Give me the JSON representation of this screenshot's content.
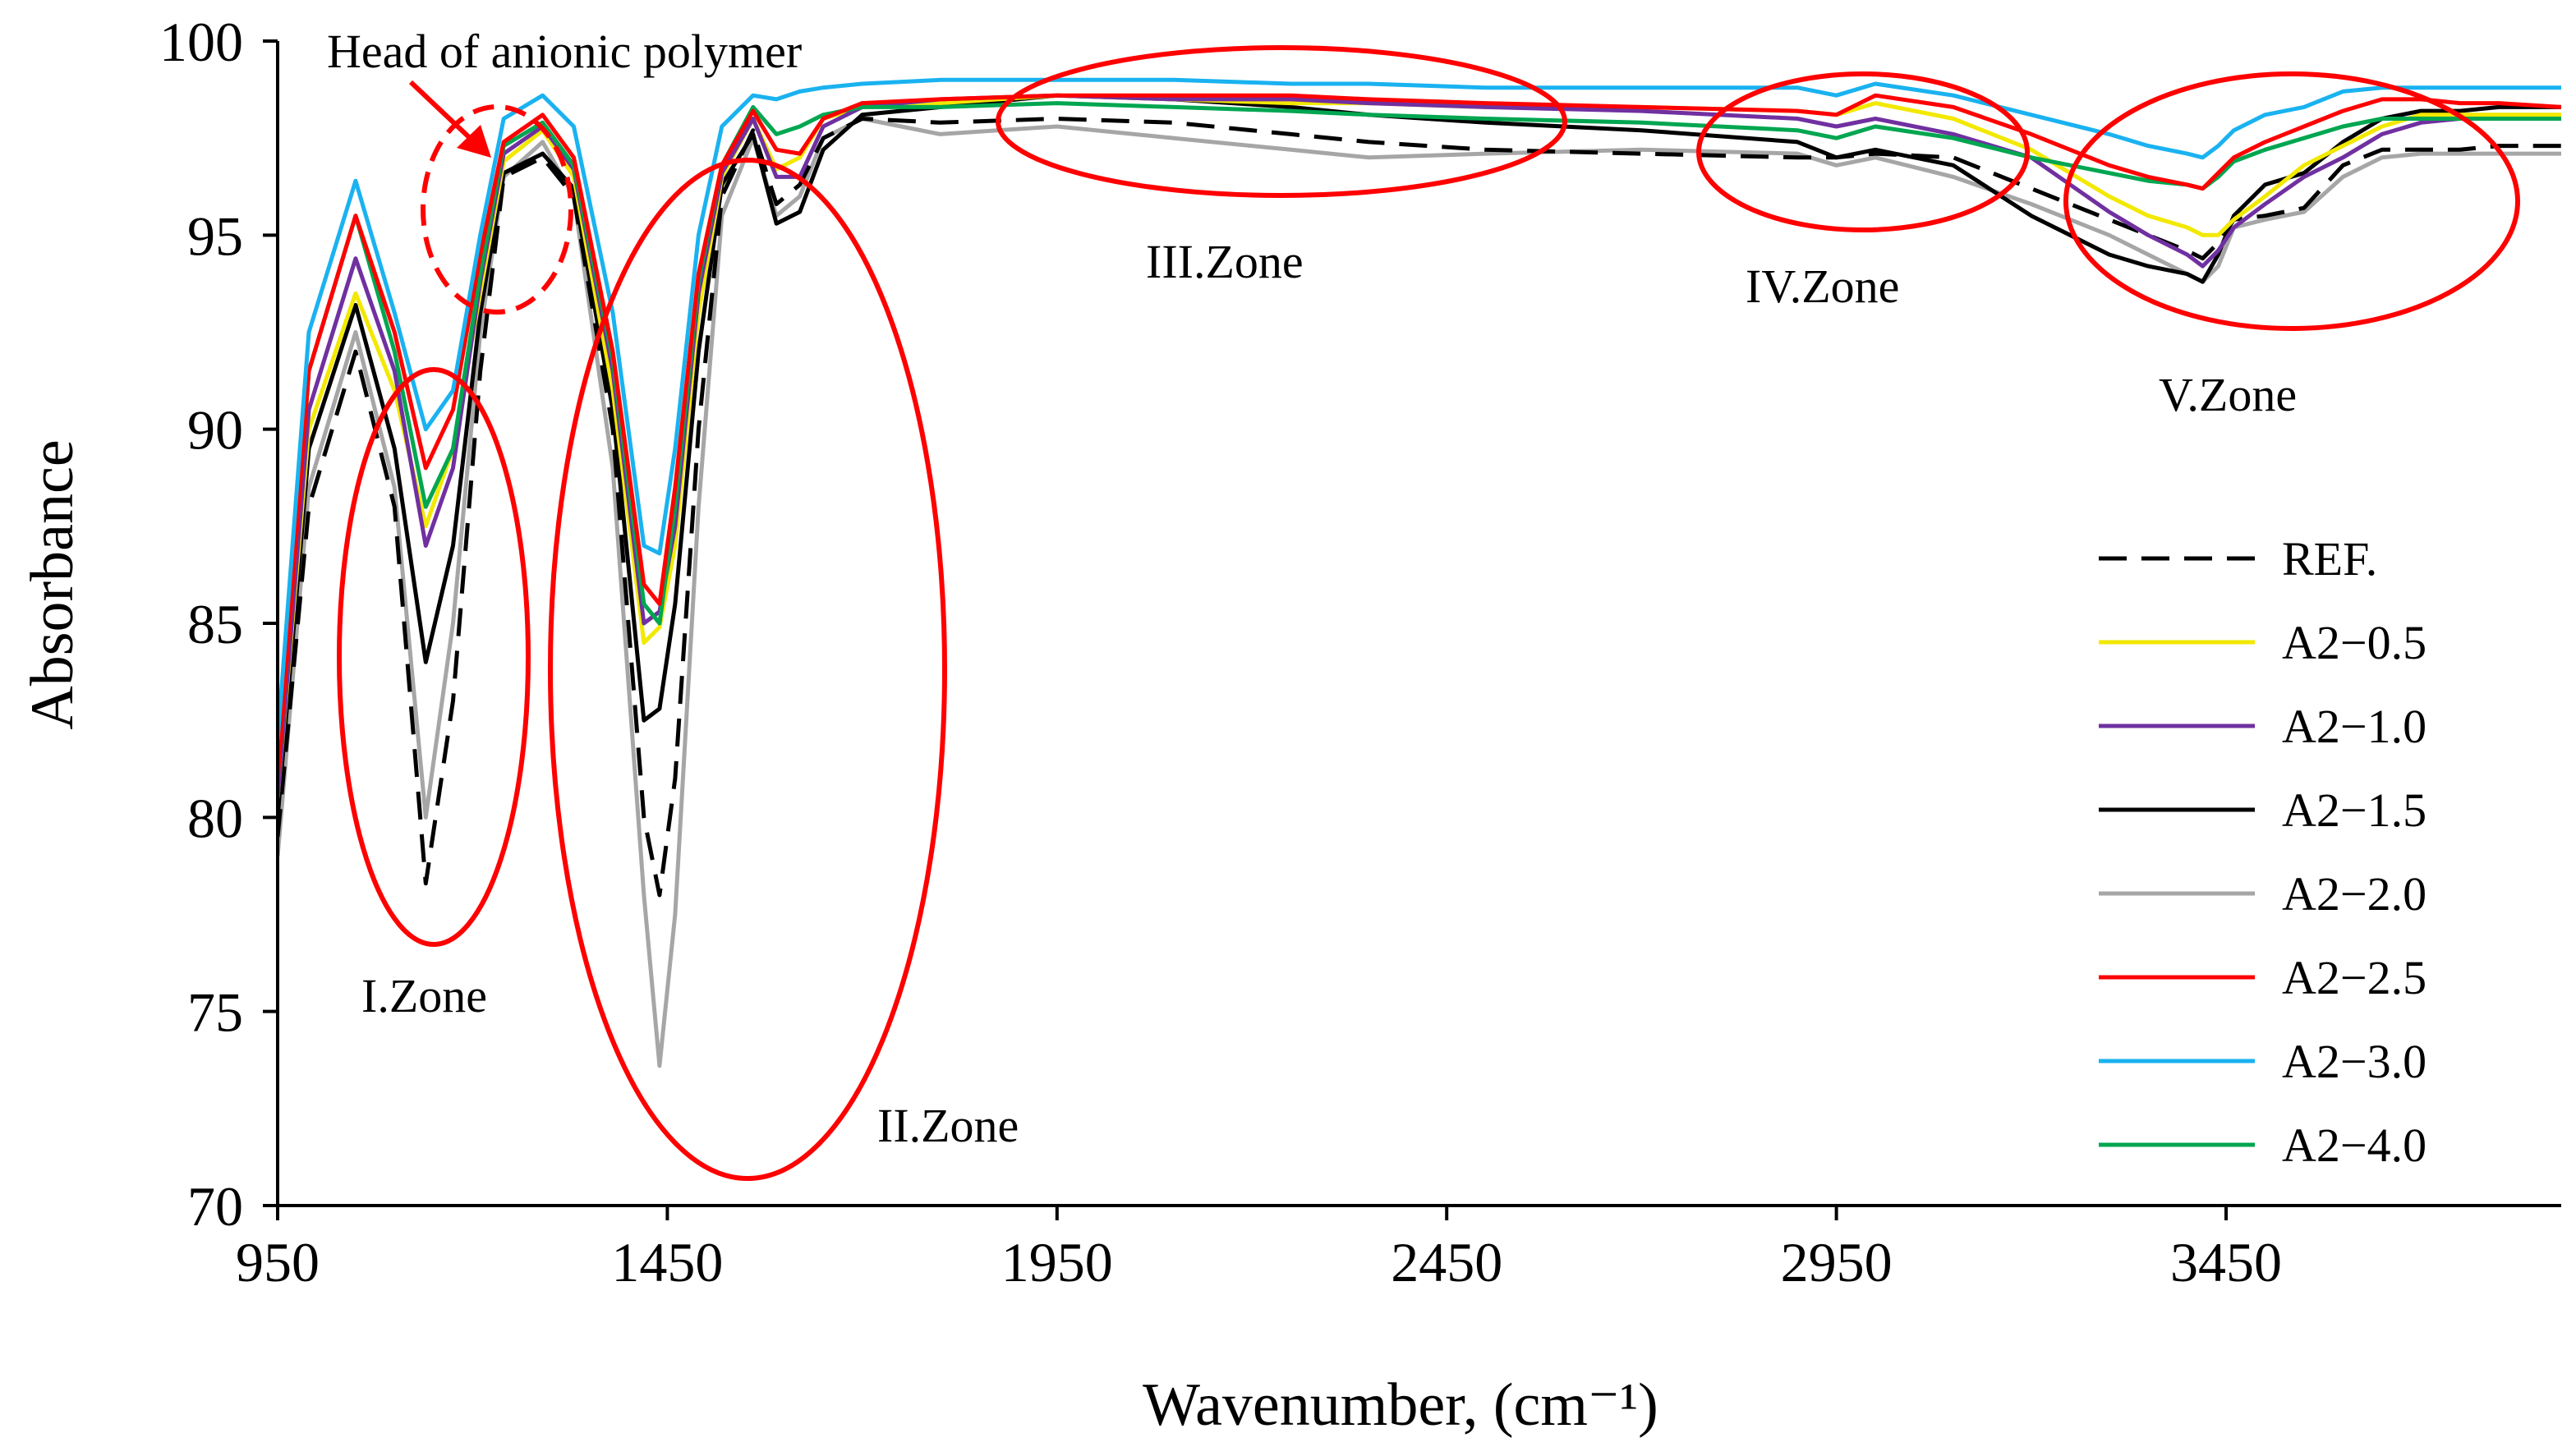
{
  "chart_data": {
    "type": "line",
    "title": "",
    "xlabel": "Wavenumber, (cm⁻¹)",
    "ylabel": "Absorbance",
    "xlim": [
      950,
      3880
    ],
    "ylim": [
      70,
      100
    ],
    "x_ticks": [
      950,
      1450,
      1950,
      2450,
      2950,
      3450
    ],
    "x_tick_labels": [
      "950",
      "1450",
      "1950",
      "2450",
      "2950",
      "3450"
    ],
    "y_ticks": [
      70,
      75,
      80,
      85,
      90,
      95,
      100
    ],
    "y_tick_labels": [
      "70",
      "75",
      "80",
      "85",
      "90",
      "95",
      "100"
    ],
    "legend_position": "right",
    "annotations": {
      "head_label": "Head of anionic polymer",
      "zones": [
        "I.Zone",
        "II.Zone",
        "III.Zone",
        "IV.Zone",
        "V.Zone"
      ]
    },
    "series": [
      {
        "name": "REF.",
        "color": "#000000",
        "dash": "dashed",
        "x": [
          950,
          990,
          1050,
          1100,
          1140,
          1175,
          1210,
          1240,
          1290,
          1330,
          1380,
          1420,
          1440,
          1460,
          1490,
          1520,
          1560,
          1590,
          1620,
          1650,
          1700,
          1800,
          1950,
          2100,
          2250,
          2350,
          2500,
          2700,
          2900,
          2950,
          3000,
          3100,
          3200,
          3300,
          3350,
          3400,
          3420,
          3440,
          3460,
          3500,
          3550,
          3600,
          3650,
          3700,
          3750,
          3800,
          3880
        ],
        "y": [
          79.5,
          88.0,
          92.0,
          88.0,
          78.3,
          83.0,
          91.5,
          96.5,
          97.0,
          96.0,
          90.0,
          80.0,
          78.0,
          81.0,
          90.0,
          96.0,
          97.7,
          95.8,
          96.3,
          97.5,
          98.0,
          97.9,
          98.0,
          97.9,
          97.6,
          97.4,
          97.2,
          97.1,
          97.0,
          97.0,
          97.1,
          97.0,
          96.2,
          95.4,
          95.0,
          94.6,
          94.4,
          94.8,
          95.4,
          95.5,
          95.7,
          96.8,
          97.2,
          97.2,
          97.2,
          97.3,
          97.3
        ]
      },
      {
        "name": "A2−0.5",
        "color": "#f2e800",
        "dash": "solid",
        "x": [
          950,
          990,
          1050,
          1100,
          1140,
          1175,
          1210,
          1240,
          1290,
          1330,
          1380,
          1420,
          1440,
          1460,
          1490,
          1520,
          1560,
          1590,
          1620,
          1650,
          1700,
          1800,
          1950,
          2100,
          2250,
          2350,
          2500,
          2700,
          2900,
          2950,
          3000,
          3100,
          3200,
          3300,
          3350,
          3400,
          3420,
          3440,
          3460,
          3500,
          3550,
          3600,
          3650,
          3700,
          3750,
          3800,
          3880
        ],
        "y": [
          80.5,
          90.0,
          93.5,
          91.0,
          87.5,
          89.5,
          93.5,
          96.9,
          97.7,
          96.5,
          91.0,
          84.5,
          84.9,
          87.0,
          93.0,
          96.5,
          98.0,
          96.7,
          97.0,
          98.0,
          98.3,
          98.4,
          98.6,
          98.5,
          98.4,
          98.4,
          98.3,
          98.3,
          98.2,
          98.1,
          98.4,
          98.0,
          97.2,
          96.0,
          95.5,
          95.2,
          95.0,
          95.0,
          95.4,
          96.0,
          96.8,
          97.3,
          97.8,
          98.1,
          98.1,
          98.1,
          98.1
        ]
      },
      {
        "name": "A2−1.0",
        "color": "#7030a0",
        "dash": "solid",
        "x": [
          950,
          990,
          1050,
          1100,
          1140,
          1175,
          1210,
          1240,
          1290,
          1330,
          1380,
          1420,
          1440,
          1460,
          1490,
          1520,
          1560,
          1590,
          1620,
          1650,
          1700,
          1800,
          1950,
          2100,
          2250,
          2350,
          2500,
          2700,
          2900,
          2950,
          3000,
          3100,
          3200,
          3300,
          3350,
          3400,
          3420,
          3440,
          3460,
          3500,
          3550,
          3600,
          3650,
          3700,
          3750,
          3800,
          3880
        ],
        "y": [
          80.5,
          90.5,
          94.4,
          91.5,
          87.0,
          89.0,
          93.8,
          97.1,
          97.8,
          96.7,
          91.5,
          85.0,
          85.3,
          87.5,
          93.5,
          96.6,
          98.0,
          96.5,
          96.5,
          97.8,
          98.3,
          98.5,
          98.6,
          98.5,
          98.5,
          98.4,
          98.3,
          98.2,
          98.0,
          97.8,
          98.0,
          97.6,
          97.0,
          95.6,
          95.0,
          94.5,
          94.2,
          94.6,
          95.2,
          95.8,
          96.5,
          97.0,
          97.6,
          97.9,
          98.0,
          98.0,
          98.0
        ]
      },
      {
        "name": "A2−1.5",
        "color": "#000000",
        "dash": "solid",
        "x": [
          950,
          990,
          1050,
          1100,
          1140,
          1175,
          1210,
          1240,
          1290,
          1330,
          1380,
          1420,
          1440,
          1460,
          1490,
          1520,
          1560,
          1590,
          1620,
          1650,
          1700,
          1800,
          1950,
          2100,
          2250,
          2350,
          2500,
          2700,
          2900,
          2950,
          3000,
          3100,
          3200,
          3300,
          3350,
          3400,
          3420,
          3440,
          3460,
          3500,
          3550,
          3600,
          3650,
          3700,
          3750,
          3800,
          3880
        ],
        "y": [
          80.0,
          89.5,
          93.2,
          89.5,
          84.0,
          87.0,
          93.0,
          96.6,
          97.1,
          96.2,
          90.5,
          82.5,
          82.8,
          85.5,
          92.0,
          96.3,
          97.6,
          95.3,
          95.6,
          97.2,
          98.1,
          98.3,
          98.6,
          98.5,
          98.3,
          98.1,
          97.9,
          97.7,
          97.4,
          97.0,
          97.2,
          96.8,
          95.5,
          94.5,
          94.2,
          94.0,
          93.8,
          94.5,
          95.5,
          96.3,
          96.6,
          97.4,
          98.0,
          98.2,
          98.2,
          98.3,
          98.3
        ]
      },
      {
        "name": "A2−2.0",
        "color": "#a6a6a6",
        "dash": "solid",
        "x": [
          950,
          990,
          1050,
          1100,
          1140,
          1175,
          1210,
          1240,
          1290,
          1330,
          1380,
          1420,
          1440,
          1460,
          1490,
          1520,
          1560,
          1590,
          1620,
          1650,
          1700,
          1800,
          1950,
          2100,
          2250,
          2350,
          2500,
          2700,
          2900,
          2950,
          3000,
          3100,
          3200,
          3300,
          3350,
          3400,
          3420,
          3440,
          3460,
          3500,
          3550,
          3600,
          3650,
          3700,
          3750,
          3800,
          3880
        ],
        "y": [
          79.0,
          88.5,
          92.5,
          88.5,
          80.0,
          85.0,
          92.5,
          96.5,
          97.4,
          96.0,
          89.0,
          78.0,
          73.6,
          77.5,
          88.0,
          95.5,
          97.5,
          95.5,
          96.0,
          97.5,
          98.0,
          97.6,
          97.8,
          97.5,
          97.2,
          97.0,
          97.1,
          97.2,
          97.1,
          96.8,
          97.0,
          96.5,
          95.8,
          95.0,
          94.5,
          94.0,
          93.8,
          94.2,
          95.2,
          95.4,
          95.6,
          96.5,
          97.0,
          97.1,
          97.1,
          97.1,
          97.1
        ]
      },
      {
        "name": "A2−2.5",
        "color": "#ff0000",
        "dash": "solid",
        "x": [
          950,
          990,
          1050,
          1100,
          1140,
          1175,
          1210,
          1240,
          1290,
          1330,
          1380,
          1420,
          1440,
          1460,
          1490,
          1520,
          1560,
          1590,
          1620,
          1650,
          1700,
          1800,
          1950,
          2100,
          2250,
          2350,
          2500,
          2700,
          2900,
          2950,
          3000,
          3100,
          3200,
          3300,
          3350,
          3400,
          3420,
          3440,
          3460,
          3500,
          3550,
          3600,
          3650,
          3700,
          3750,
          3800,
          3880
        ],
        "y": [
          81.0,
          91.5,
          95.5,
          92.5,
          89.0,
          90.5,
          94.5,
          97.4,
          98.1,
          97.0,
          92.0,
          86.0,
          85.5,
          88.5,
          94.0,
          96.8,
          98.2,
          97.2,
          97.1,
          98.0,
          98.4,
          98.5,
          98.6,
          98.6,
          98.6,
          98.5,
          98.4,
          98.3,
          98.2,
          98.1,
          98.6,
          98.3,
          97.6,
          96.8,
          96.5,
          96.3,
          96.2,
          96.6,
          97.0,
          97.4,
          97.8,
          98.2,
          98.5,
          98.5,
          98.4,
          98.4,
          98.3
        ]
      },
      {
        "name": "A2−3.0",
        "color": "#1ab2f0",
        "dash": "solid",
        "x": [
          950,
          990,
          1050,
          1100,
          1140,
          1175,
          1210,
          1240,
          1290,
          1330,
          1380,
          1420,
          1440,
          1460,
          1490,
          1520,
          1560,
          1590,
          1620,
          1650,
          1700,
          1800,
          1950,
          2100,
          2250,
          2350,
          2500,
          2700,
          2900,
          2950,
          3000,
          3100,
          3200,
          3300,
          3350,
          3400,
          3420,
          3440,
          3460,
          3500,
          3550,
          3600,
          3650,
          3700,
          3750,
          3800,
          3880
        ],
        "y": [
          82.0,
          92.5,
          96.4,
          93.0,
          90.0,
          91.0,
          95.0,
          98.0,
          98.6,
          97.8,
          93.0,
          87.0,
          86.8,
          89.5,
          95.0,
          97.8,
          98.6,
          98.5,
          98.7,
          98.8,
          98.9,
          99.0,
          99.0,
          99.0,
          98.9,
          98.9,
          98.8,
          98.8,
          98.8,
          98.6,
          98.9,
          98.6,
          98.1,
          97.6,
          97.3,
          97.1,
          97.0,
          97.3,
          97.7,
          98.1,
          98.3,
          98.7,
          98.8,
          98.8,
          98.8,
          98.8,
          98.8
        ]
      },
      {
        "name": "A2−4.0",
        "color": "#00a650",
        "dash": "solid",
        "x": [
          950,
          990,
          1050,
          1100,
          1140,
          1175,
          1210,
          1240,
          1290,
          1330,
          1380,
          1420,
          1440,
          1460,
          1490,
          1520,
          1560,
          1590,
          1620,
          1650,
          1700,
          1800,
          1950,
          2100,
          2250,
          2350,
          2500,
          2700,
          2900,
          2950,
          3000,
          3100,
          3200,
          3300,
          3350,
          3400,
          3420,
          3440,
          3460,
          3500,
          3550,
          3600,
          3650,
          3700,
          3750,
          3800,
          3880
        ],
        "y": [
          81.0,
          91.5,
          95.5,
          92.0,
          88.0,
          89.5,
          94.0,
          97.3,
          97.9,
          96.8,
          91.8,
          85.5,
          85.0,
          88.0,
          93.8,
          96.8,
          98.3,
          97.6,
          97.8,
          98.1,
          98.3,
          98.3,
          98.4,
          98.3,
          98.2,
          98.1,
          98.0,
          97.9,
          97.7,
          97.5,
          97.8,
          97.5,
          97.0,
          96.6,
          96.4,
          96.3,
          96.2,
          96.5,
          96.9,
          97.2,
          97.5,
          97.8,
          98.0,
          98.0,
          98.0,
          98.0,
          98.0
        ]
      }
    ]
  }
}
